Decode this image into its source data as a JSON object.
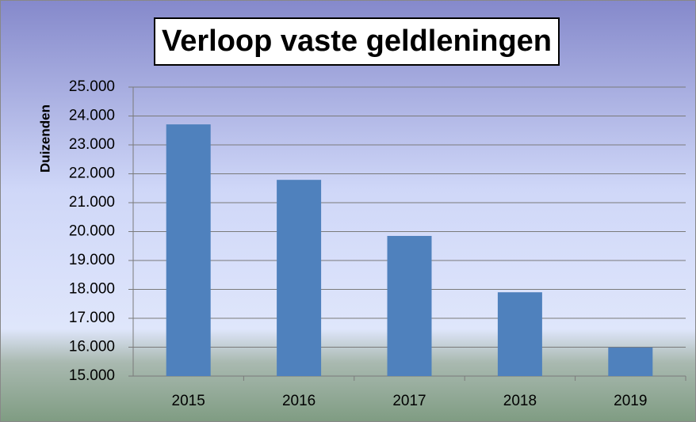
{
  "chart_data": {
    "type": "bar",
    "title": "Verloop vaste geldleningen",
    "y_label": "Duizenden",
    "categories": [
      "2015",
      "2016",
      "2017",
      "2018",
      "2019"
    ],
    "values": [
      23710,
      21790,
      19850,
      17900,
      15990
    ],
    "color": "#4f81bd",
    "ylim": [
      15000,
      25000
    ],
    "yticks": [
      {
        "value": 15000,
        "label": "15.000"
      },
      {
        "value": 16000,
        "label": "16.000"
      },
      {
        "value": 17000,
        "label": "17.000"
      },
      {
        "value": 18000,
        "label": "18.000"
      },
      {
        "value": 19000,
        "label": "19.000"
      },
      {
        "value": 20000,
        "label": "20.000"
      },
      {
        "value": 21000,
        "label": "21.000"
      },
      {
        "value": 22000,
        "label": "22.000"
      },
      {
        "value": 23000,
        "label": "23.000"
      },
      {
        "value": 24000,
        "label": "24.000"
      },
      {
        "value": 25000,
        "label": "25.000"
      }
    ],
    "grid": true
  }
}
